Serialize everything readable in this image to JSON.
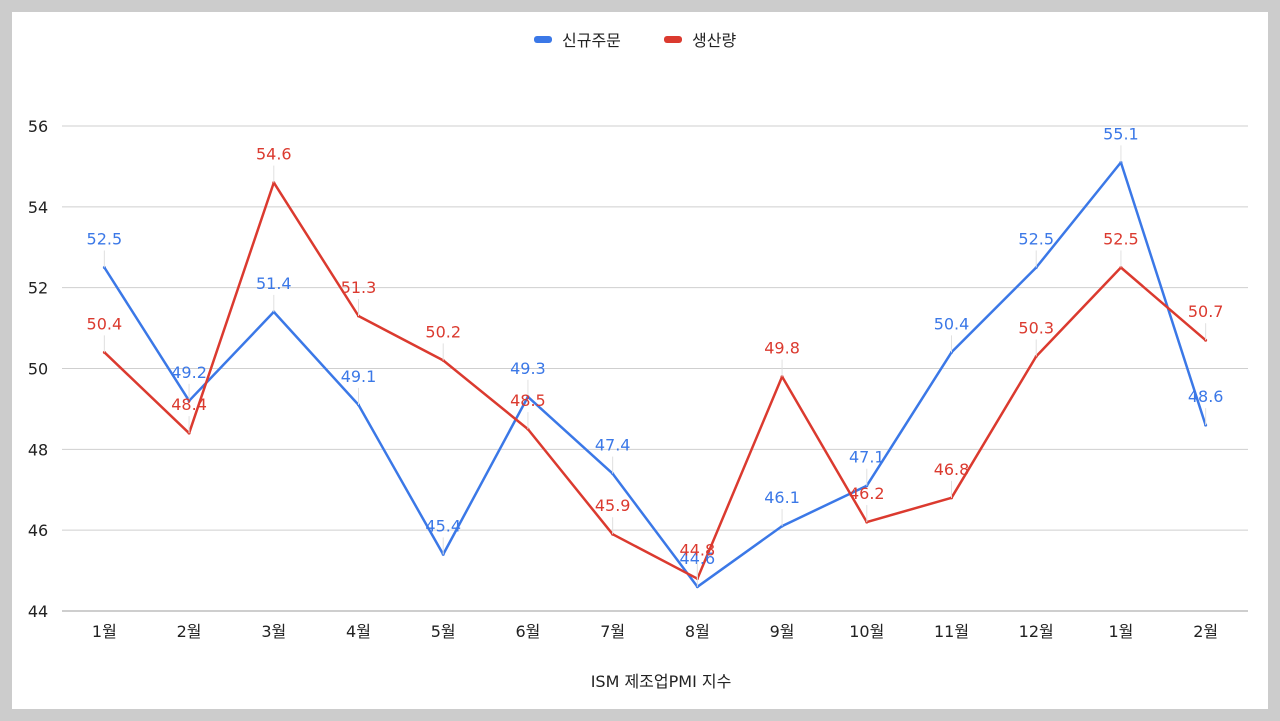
{
  "chart_data": {
    "type": "line",
    "title": "",
    "xlabel": "ISM 제조업PMI 지수",
    "ylabel": "",
    "categories": [
      "1월",
      "2월",
      "3월",
      "4월",
      "5월",
      "6월",
      "7월",
      "8월",
      "9월",
      "10월",
      "11월",
      "12월",
      "1월",
      "2월"
    ],
    "ylim": [
      44,
      56
    ],
    "yticks": [
      44,
      46,
      48,
      50,
      52,
      54,
      56
    ],
    "grid": true,
    "legend_position": "top-center",
    "series": [
      {
        "name": "신규주문",
        "color": "#3b78e7",
        "values": [
          52.5,
          49.2,
          51.4,
          49.1,
          45.4,
          49.3,
          47.4,
          44.6,
          46.1,
          47.1,
          50.4,
          52.5,
          55.1,
          48.6
        ]
      },
      {
        "name": "생산량",
        "color": "#db3a2f",
        "values": [
          50.4,
          48.4,
          54.6,
          51.3,
          50.2,
          48.5,
          45.9,
          44.8,
          49.8,
          46.2,
          46.8,
          50.3,
          52.5,
          50.7
        ]
      }
    ]
  }
}
